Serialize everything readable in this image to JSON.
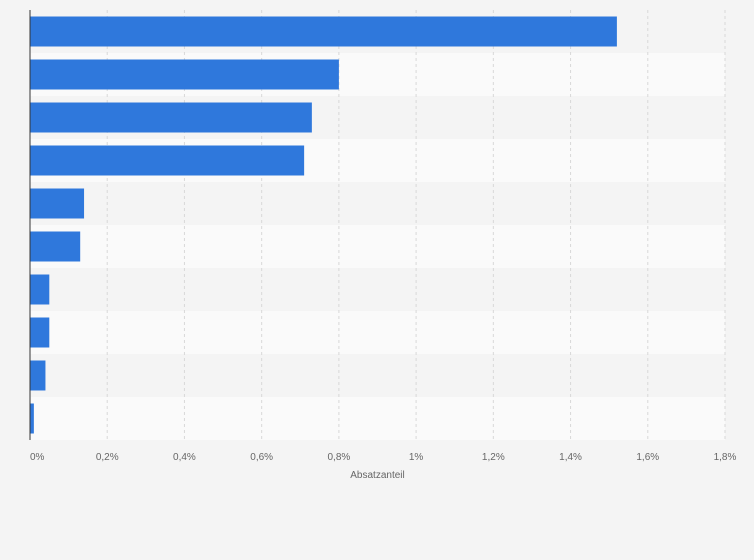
{
  "chart_data": {
    "type": "bar",
    "orientation": "horizontal",
    "title": "",
    "xlabel": "Absatzanteil",
    "ylabel": "",
    "categories": [
      "",
      "",
      "",
      "",
      "",
      "",
      "",
      "",
      "",
      ""
    ],
    "values": [
      1.52,
      0.8,
      0.73,
      0.71,
      0.14,
      0.13,
      0.05,
      0.05,
      0.04,
      0.01
    ],
    "xlim": [
      0,
      1.8
    ],
    "x_ticks": [
      0,
      0.2,
      0.4,
      0.6,
      0.8,
      1.0,
      1.2,
      1.4,
      1.6,
      1.8
    ],
    "x_tick_labels": [
      "0%",
      "0,2%",
      "0,4%",
      "0,6%",
      "0,8%",
      "1%",
      "1,2%",
      "1,4%",
      "1,6%",
      "1,8%"
    ],
    "grid": true,
    "legend": "none",
    "colors": {
      "bar": "#2f78dc",
      "background": "#f4f4f4",
      "band_light": "#fafafa",
      "band_dark": "#f4f4f4",
      "grid": "#d8d8d8",
      "axis": "#333333",
      "text": "#666666"
    }
  }
}
